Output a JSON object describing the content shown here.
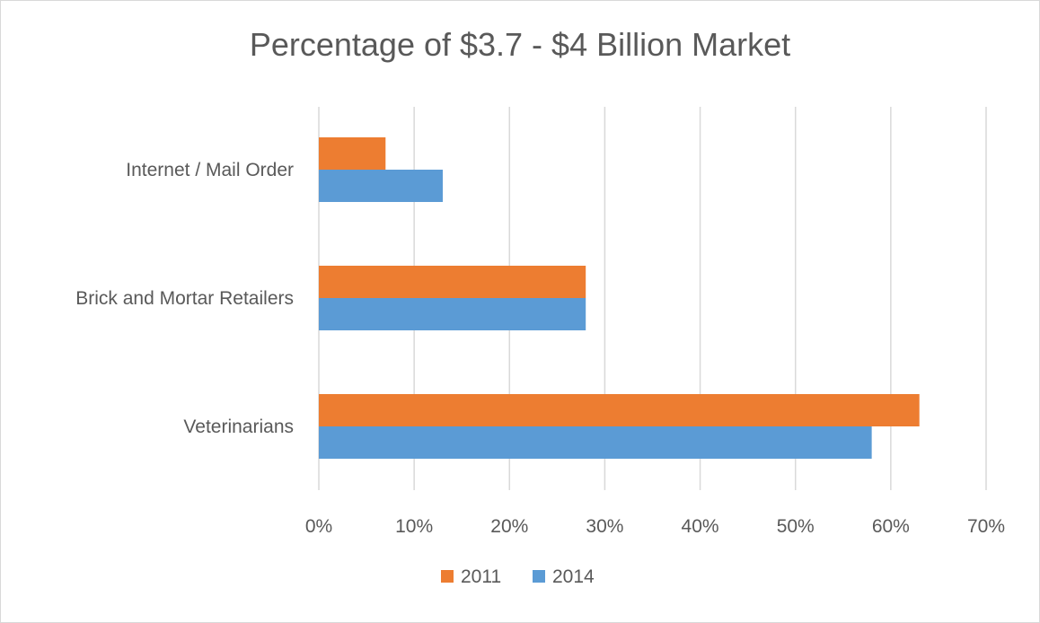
{
  "chart_data": {
    "type": "bar",
    "orientation": "horizontal",
    "title": "Percentage of $3.7 - $4 Billion Market",
    "categories": [
      "Internet / Mail Order",
      "Brick and Mortar Retailers",
      "Veterinarians"
    ],
    "series": [
      {
        "name": "2011",
        "color": "#ED7D31",
        "values": [
          7,
          28,
          63
        ]
      },
      {
        "name": "2014",
        "color": "#5B9BD5",
        "values": [
          13,
          28,
          58
        ]
      }
    ],
    "xlim": [
      0,
      70
    ],
    "xticks": [
      "0%",
      "10%",
      "20%",
      "30%",
      "40%",
      "50%",
      "60%",
      "70%"
    ],
    "xlabel": "",
    "ylabel": "",
    "grid": true,
    "legend": "bottom"
  }
}
